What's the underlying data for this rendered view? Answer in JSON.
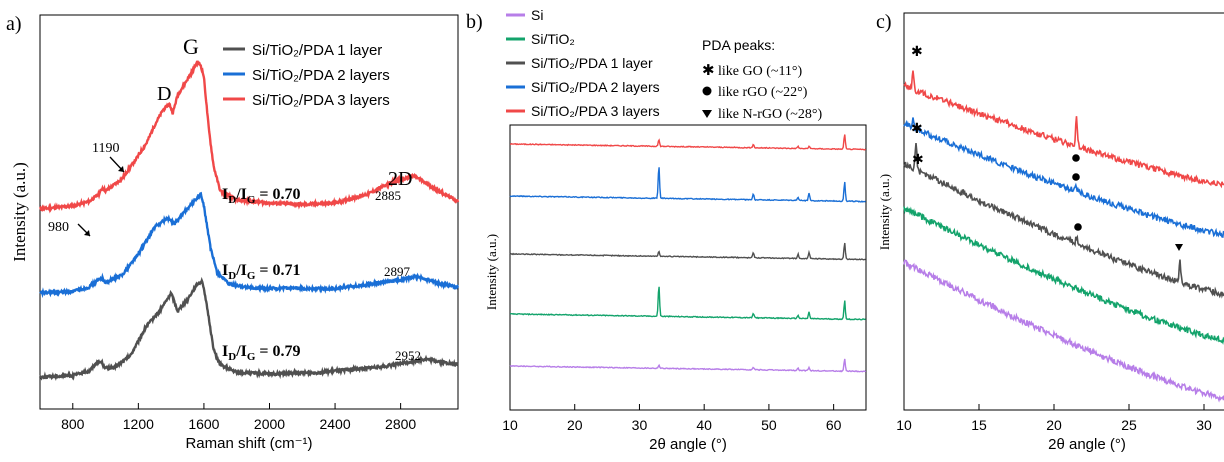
{
  "chart_data": [
    {
      "panel_label": "a)",
      "type": "line",
      "xlabel": "Raman shift (cm⁻¹)",
      "ylabel": "Intensity (a.u.)",
      "xlim": [
        600,
        3150
      ],
      "xticks": [
        "800",
        "1200",
        "1600",
        "2000",
        "2400",
        "2800"
      ],
      "peak_labels": [
        "D",
        "G",
        "2D",
        "980",
        "1190"
      ],
      "legend": [
        {
          "name": "Si/TiO₂/PDA 1 layer",
          "color": "#505050"
        },
        {
          "name": "Si/TiO₂/PDA 2 layers",
          "color": "#1a6fd6"
        },
        {
          "name": "Si/TiO₂/PDA 3 layers",
          "color": "#f04848"
        }
      ],
      "ratio_labels": [
        "ID/IG = 0.70",
        "ID/IG = 0.71",
        "ID/IG = 0.79"
      ],
      "peak_positions": [
        "2885",
        "2897",
        "2952"
      ],
      "series": [
        {
          "name": "Si/TiO₂/PDA 3 layers",
          "color": "#f04848",
          "offset": 2,
          "x": [
            600,
            800,
            900,
            960,
            980,
            1000,
            1100,
            1190,
            1250,
            1300,
            1350,
            1390,
            1410,
            1440,
            1480,
            1530,
            1560,
            1580,
            1600,
            1630,
            1660,
            1700,
            1800,
            2000,
            2200,
            2400,
            2600,
            2750,
            2885,
            3000,
            3150
          ],
          "y": [
            0.02,
            0.04,
            0.07,
            0.12,
            0.16,
            0.14,
            0.22,
            0.36,
            0.46,
            0.58,
            0.68,
            0.72,
            0.66,
            0.78,
            0.85,
            0.94,
            1.0,
            0.98,
            0.9,
            0.55,
            0.3,
            0.14,
            0.08,
            0.06,
            0.05,
            0.06,
            0.12,
            0.2,
            0.24,
            0.16,
            0.07
          ]
        },
        {
          "name": "Si/TiO₂/PDA 2 layers",
          "color": "#1a6fd6",
          "offset": 1,
          "x": [
            600,
            800,
            900,
            960,
            980,
            1000,
            1100,
            1200,
            1300,
            1380,
            1420,
            1480,
            1530,
            1580,
            1600,
            1640,
            1680,
            1750,
            1900,
            2100,
            2400,
            2700,
            2897,
            3050,
            3150
          ],
          "y": [
            0.02,
            0.03,
            0.06,
            0.11,
            0.12,
            0.09,
            0.14,
            0.28,
            0.46,
            0.52,
            0.48,
            0.56,
            0.62,
            0.68,
            0.6,
            0.32,
            0.16,
            0.08,
            0.05,
            0.05,
            0.05,
            0.09,
            0.13,
            0.08,
            0.06
          ]
        },
        {
          "name": "Si/TiO₂/PDA 1 layer",
          "color": "#505050",
          "offset": 0,
          "x": [
            600,
            800,
            900,
            950,
            975,
            1000,
            1050,
            1150,
            1250,
            1330,
            1400,
            1440,
            1500,
            1560,
            1590,
            1620,
            1660,
            1700,
            1800,
            2000,
            2300,
            2700,
            2952,
            3150
          ],
          "y": [
            0.02,
            0.03,
            0.06,
            0.12,
            0.12,
            0.08,
            0.08,
            0.16,
            0.36,
            0.46,
            0.58,
            0.46,
            0.54,
            0.64,
            0.66,
            0.48,
            0.2,
            0.1,
            0.05,
            0.04,
            0.05,
            0.09,
            0.14,
            0.1
          ]
        }
      ]
    },
    {
      "panel_label": "b)",
      "type": "line",
      "xlabel": "2θ angle (°)",
      "ylabel": "Intensity (a.u.)",
      "xlim": [
        10,
        65
      ],
      "xticks": [
        "10",
        "20",
        "30",
        "40",
        "50",
        "60"
      ],
      "legend": [
        {
          "name": "Si",
          "color": "#b77ee8"
        },
        {
          "name": "Si/TiO₂",
          "color": "#13a36b"
        },
        {
          "name": "Si/TiO₂/PDA 1 layer",
          "color": "#505050"
        },
        {
          "name": "Si/TiO₂/PDA 2 layers",
          "color": "#1a6fd6"
        },
        {
          "name": "Si/TiO₂/PDA 3 layers",
          "color": "#f04848"
        }
      ],
      "pda_legend": {
        "title": "PDA peaks:",
        "items": [
          {
            "symbol": "star",
            "label": "like GO (~11°)"
          },
          {
            "symbol": "circle",
            "label": "like rGO (~22°)"
          },
          {
            "symbol": "triangle-down",
            "label": "like N-rGO (~28°)"
          }
        ]
      },
      "peaks": [
        {
          "x": 21.5,
          "h": [
            0.2,
            0.1,
            0.15,
            0.1,
            0.2
          ]
        },
        {
          "x": 33.0,
          "h": [
            0.3,
            0.4,
            0.4,
            0.5,
            0.5
          ]
        },
        {
          "x": 47.6,
          "h": [
            0.2,
            0.35,
            0.3,
            0.3,
            0.25
          ]
        },
        {
          "x": 54.5,
          "h": [
            0.2,
            0.25,
            0.2,
            0.2,
            0.2
          ]
        },
        {
          "x": 56.2,
          "h": [
            0.25,
            0.35,
            0.4,
            0.35,
            0.3
          ]
        },
        {
          "x": 61.7,
          "h": [
            0.5,
            0.55,
            0.55,
            0.6,
            0.6
          ]
        },
        {
          "x": 32.9,
          "h": [
            0.4,
            0.0,
            0.0,
            0.0,
            0.0
          ]
        }
      ],
      "series": [
        {
          "name": "Si/TiO₂/PDA 3 layers",
          "color": "#f04848",
          "offset": 4,
          "peak_scale": [
            0,
            0.3,
            0.15,
            0.1,
            0.1,
            0.7,
            0
          ]
        },
        {
          "name": "Si/TiO₂/PDA 2 layers",
          "color": "#1a6fd6",
          "offset": 3,
          "peak_scale": [
            0,
            1.5,
            0.25,
            0.15,
            0.35,
            0.9,
            0
          ]
        },
        {
          "name": "Si/TiO₂/PDA 1 layer",
          "color": "#505050",
          "offset": 2,
          "peak_scale": [
            0,
            0.25,
            0.25,
            0.2,
            0.3,
            0.75,
            0
          ]
        },
        {
          "name": "Si/TiO₂",
          "color": "#13a36b",
          "offset": 1,
          "peak_scale": [
            0,
            1.45,
            0.2,
            0.15,
            0.3,
            0.85,
            0
          ]
        },
        {
          "name": "Si",
          "color": "#b77ee8",
          "offset": 0,
          "peak_scale": [
            0,
            0.15,
            0.1,
            0.1,
            0.15,
            0.55,
            0
          ]
        }
      ]
    },
    {
      "panel_label": "c)",
      "type": "line",
      "xlabel": "2θ angle (°)",
      "ylabel": "Intensity (a.u.)",
      "xlim": [
        10,
        32
      ],
      "xticks": [
        "10",
        "15",
        "20",
        "25",
        "30"
      ],
      "series": [
        {
          "name": "Si/TiO₂/PDA 3 layers",
          "color": "#f04848",
          "offset": 4
        },
        {
          "name": "Si/TiO₂/PDA 2 layers",
          "color": "#1a6fd6",
          "offset": 3
        },
        {
          "name": "Si/TiO₂/PDA 1 layer",
          "color": "#505050",
          "offset": 2
        },
        {
          "name": "Si/TiO₂",
          "color": "#13a36b",
          "offset": 1
        },
        {
          "name": "Si",
          "color": "#b77ee8",
          "offset": 0
        }
      ]
    }
  ]
}
